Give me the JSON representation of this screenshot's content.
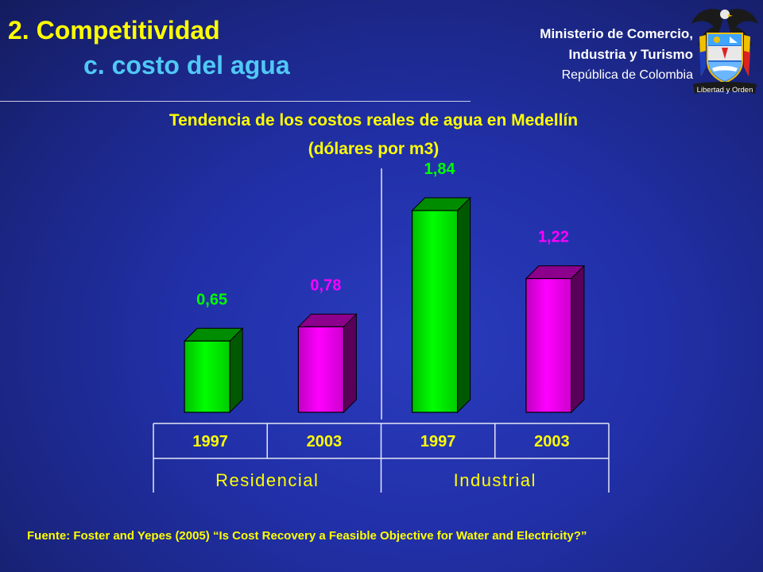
{
  "header": {
    "title_line1": "2.  Competitividad",
    "title_line2": "c. costo del agua"
  },
  "ministry": {
    "line1": "Ministerio de Comercio,",
    "line2": "Industria y Turismo",
    "line3": "República de Colombia",
    "motto": "Libertad y Orden"
  },
  "chart_data": {
    "type": "bar",
    "title": "Tendencia de los costos reales de agua en Medellín",
    "subtitle": "(dólares por m3)",
    "groups": [
      "Residencial",
      "Industrial"
    ],
    "categories": [
      "1997",
      "2003",
      "1997",
      "2003"
    ],
    "category_group": [
      0,
      0,
      1,
      1
    ],
    "values": [
      0.65,
      0.78,
      1.84,
      1.22
    ],
    "value_labels": [
      "0,65",
      "0,78",
      "1,84",
      "1,22"
    ],
    "bar_colors": [
      "#00ff00",
      "#ff00ff",
      "#00ff00",
      "#ff00ff"
    ],
    "label_colors": [
      "#00ff00",
      "#ff00ff",
      "#00ff00",
      "#ff00ff"
    ],
    "ylim": [
      0,
      1.84
    ],
    "grid": false
  },
  "footer": {
    "source": "Fuente: Foster and Yepes (2005) “Is Cost Recovery a Feasible Objective for Water and Electricity?”"
  }
}
